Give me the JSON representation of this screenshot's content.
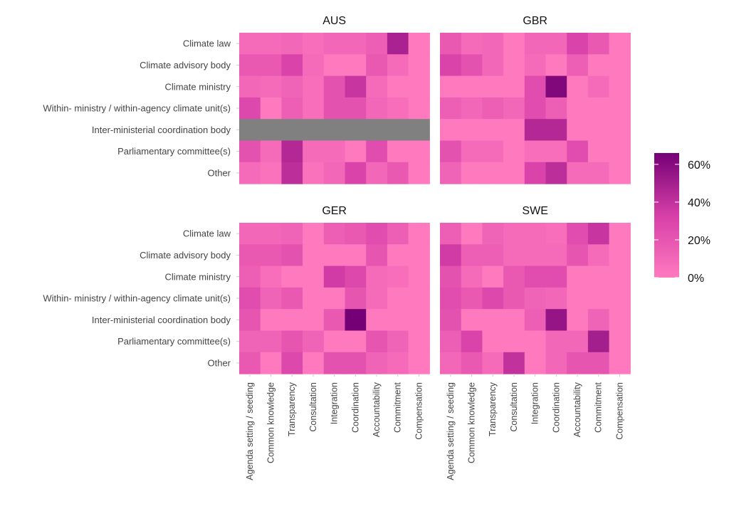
{
  "chart_data": {
    "type": "heatmap",
    "value_unit": "%",
    "rows": [
      "Climate law",
      "Climate advisory body",
      "Climate ministry",
      "Within- ministry / within-agency climate unit(s)",
      "Inter-ministerial coordination body",
      "Parliamentary committee(s)",
      "Other"
    ],
    "columns": [
      "Agenda setting / seeding",
      "Common knowledge",
      "Transparency",
      "Consultation",
      "Integration",
      "Coordination",
      "Accountability",
      "Commitment",
      "Compensation"
    ],
    "legend": {
      "ticks": [
        "0%",
        "20%",
        "40%",
        "60%"
      ],
      "min": 0,
      "max": 66,
      "position": "right"
    },
    "na_color": "#808080",
    "colors": {
      "low": "#ff79bf",
      "mid": "#d63fa8",
      "high": "#750075"
    },
    "panels": [
      {
        "title": "AUS",
        "values": [
          [
            8,
            8,
            10,
            6,
            10,
            10,
            15,
            48,
            0
          ],
          [
            18,
            18,
            30,
            8,
            0,
            0,
            18,
            8,
            0
          ],
          [
            10,
            8,
            12,
            6,
            22,
            38,
            8,
            0,
            0
          ],
          [
            28,
            0,
            15,
            6,
            22,
            22,
            10,
            6,
            0
          ],
          [
            null,
            null,
            null,
            null,
            null,
            null,
            null,
            null,
            null
          ],
          [
            22,
            8,
            45,
            8,
            8,
            0,
            25,
            0,
            0
          ],
          [
            8,
            4,
            42,
            4,
            10,
            30,
            10,
            18,
            0
          ]
        ]
      },
      {
        "title": "GBR",
        "values": [
          [
            18,
            8,
            10,
            0,
            10,
            10,
            30,
            18,
            0
          ],
          [
            30,
            22,
            10,
            0,
            8,
            0,
            15,
            0,
            0
          ],
          [
            0,
            0,
            0,
            0,
            25,
            62,
            0,
            8,
            0
          ],
          [
            15,
            10,
            15,
            10,
            25,
            15,
            0,
            0,
            0
          ],
          [
            0,
            0,
            0,
            0,
            45,
            45,
            0,
            0,
            0
          ],
          [
            22,
            8,
            8,
            0,
            6,
            6,
            25,
            0,
            0
          ],
          [
            12,
            0,
            0,
            0,
            30,
            42,
            8,
            8,
            0
          ]
        ]
      },
      {
        "title": "GER",
        "values": [
          [
            10,
            10,
            12,
            0,
            15,
            18,
            25,
            15,
            0
          ],
          [
            18,
            18,
            22,
            0,
            0,
            0,
            20,
            0,
            0
          ],
          [
            15,
            6,
            0,
            0,
            35,
            28,
            8,
            6,
            0
          ],
          [
            25,
            12,
            18,
            0,
            0,
            20,
            8,
            0,
            0
          ],
          [
            20,
            0,
            0,
            0,
            18,
            66,
            0,
            0,
            0
          ],
          [
            12,
            12,
            20,
            12,
            0,
            0,
            20,
            12,
            0
          ],
          [
            18,
            0,
            28,
            0,
            22,
            22,
            12,
            8,
            0
          ]
        ]
      },
      {
        "title": "SWE",
        "values": [
          [
            15,
            0,
            12,
            8,
            8,
            6,
            25,
            38,
            0
          ],
          [
            35,
            15,
            15,
            8,
            8,
            8,
            20,
            8,
            0
          ],
          [
            22,
            8,
            0,
            18,
            25,
            25,
            0,
            0,
            0
          ],
          [
            25,
            18,
            28,
            18,
            12,
            10,
            0,
            0,
            0
          ],
          [
            22,
            0,
            0,
            0,
            15,
            55,
            0,
            12,
            0
          ],
          [
            15,
            30,
            0,
            0,
            0,
            10,
            10,
            50,
            0
          ],
          [
            10,
            18,
            8,
            40,
            0,
            10,
            20,
            20,
            0
          ]
        ]
      }
    ]
  }
}
